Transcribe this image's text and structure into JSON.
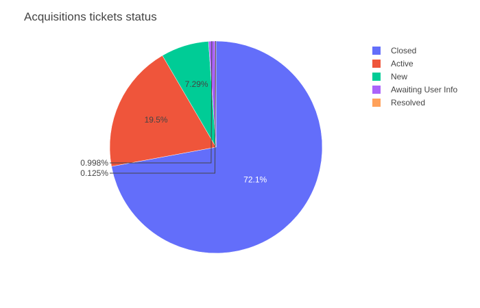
{
  "chart_data": {
    "type": "pie",
    "title": "Acquisitions tickets status",
    "categories": [
      "Closed",
      "Active",
      "New",
      "Awaiting User Info",
      "Resolved"
    ],
    "values": [
      72.1,
      19.5,
      7.29,
      0.998,
      0.125
    ],
    "value_labels": [
      "72.1%",
      "19.5%",
      "7.29%",
      "0.998%",
      "0.125%"
    ],
    "colors": [
      "#636efa",
      "#ef553b",
      "#00cc96",
      "#ab63fa",
      "#ffa15a"
    ],
    "label_colors": [
      "#ffffff",
      "#444444",
      "#444444",
      "#444444",
      "#444444"
    ],
    "start_angle_deg": 0,
    "direction": "clockwise",
    "legend_position": "top-right"
  }
}
